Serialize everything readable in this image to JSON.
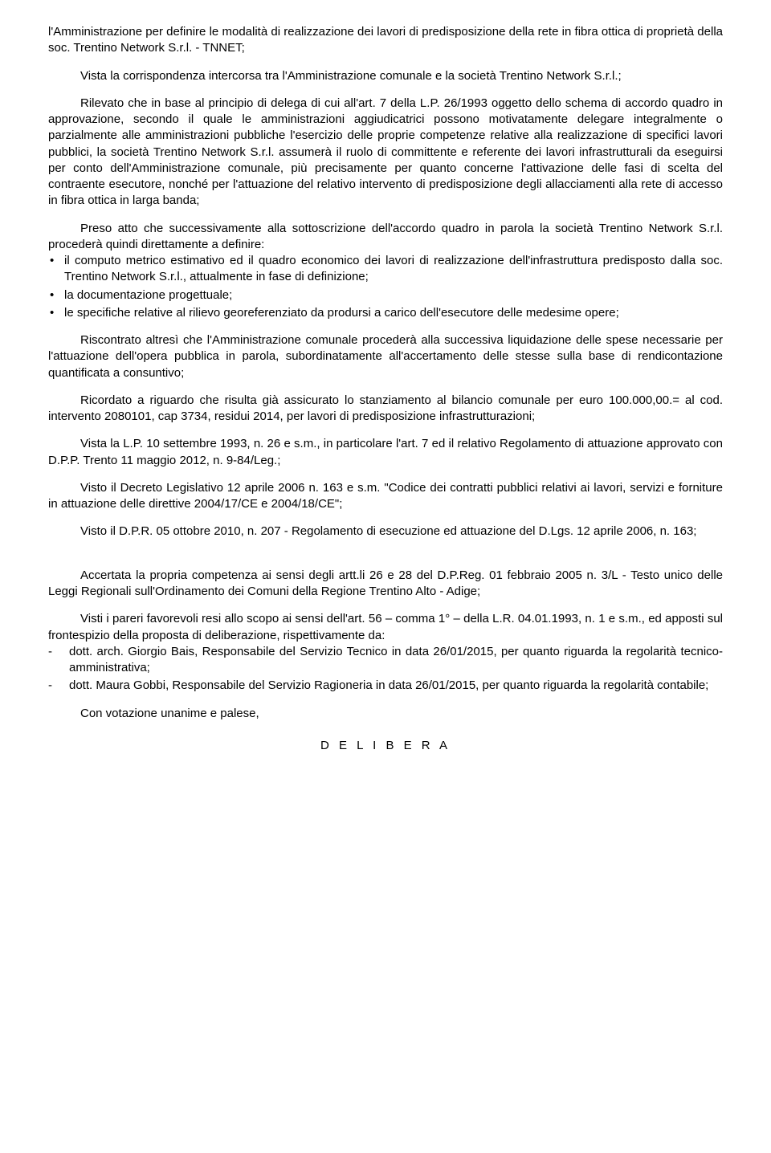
{
  "typography": {
    "font_family": "Arial, Helvetica, sans-serif",
    "font_size_pt": 11,
    "text_color": "#000000",
    "background_color": "#ffffff",
    "line_height": 1.35
  },
  "paragraphs": {
    "p1": "l'Amministrazione per definire le modalità di realizzazione dei lavori di predisposizione della rete in fibra ottica di proprietà della soc. Trentino Network S.r.l. - TNNET;",
    "p2": "Vista la corrispondenza intercorsa tra l'Amministrazione comunale e la società Trentino Network S.r.l.;",
    "p3": "Rilevato che in base al principio di delega di cui all'art. 7 della L.P. 26/1993 oggetto dello schema di accordo quadro in approvazione, secondo il quale le amministrazioni aggiudicatrici possono motivatamente delegare integralmente o parzialmente alle amministrazioni pubbliche l'esercizio delle proprie competenze relative alla realizzazione di specifici lavori pubblici, la società Trentino Network S.r.l. assumerà il ruolo di committente e referente dei lavori infrastrutturali da eseguirsi per conto dell'Amministrazione comunale, più precisamente per quanto concerne l'attivazione delle fasi di scelta del contraente esecutore, nonché per l'attuazione del relativo intervento di predisposizione degli allacciamenti alla rete di accesso in fibra ottica in larga banda;",
    "p4": "Preso atto che successivamente alla sottoscrizione dell'accordo quadro in parola la società Trentino Network S.r.l. procederà quindi direttamente a definire:",
    "list1": {
      "item1": "il computo metrico estimativo ed il quadro economico dei lavori di realizzazione dell'infrastruttura predisposto dalla soc. Trentino Network S.r.l., attualmente in fase di definizione;",
      "item2": "la documentazione progettuale;",
      "item3": "le specifiche relative al rilievo georeferenziato da prodursi a carico dell'esecutore delle medesime opere;"
    },
    "p5": "Riscontrato altresì che l'Amministrazione comunale procederà alla successiva liquidazione delle spese necessarie per l'attuazione dell'opera pubblica in parola, subordinatamente all'accertamento delle stesse sulla base di rendicontazione quantificata a consuntivo;",
    "p6": "Ricordato a riguardo che risulta già assicurato lo stanziamento al bilancio comunale per euro 100.000,00.= al cod. intervento 2080101, cap 3734, residui 2014, per lavori di predisposizione infrastrutturazioni;",
    "p7": "Vista la L.P. 10 settembre 1993, n. 26 e s.m., in particolare l'art. 7 ed il relativo Regolamento di attuazione approvato con D.P.P. Trento 11 maggio 2012, n. 9-84/Leg.;",
    "p8": "Visto il Decreto Legislativo 12 aprile 2006 n. 163 e s.m. \"Codice dei contratti pubblici relativi ai lavori, servizi e forniture in attuazione delle direttive 2004/17/CE e 2004/18/CE\";",
    "p9": "Visto il D.P.R. 05 ottobre 2010, n. 207 - Regolamento di esecuzione ed attuazione del D.Lgs. 12 aprile 2006, n. 163;",
    "p10": "Accertata la propria competenza ai sensi degli artt.li 26 e 28 del D.P.Reg. 01 febbraio 2005 n. 3/L - Testo unico delle Leggi Regionali sull'Ordinamento dei Comuni della Regione Trentino Alto - Adige;",
    "p11": "Visti i pareri favorevoli resi allo scopo ai sensi dell'art. 56 – comma 1° – della L.R. 04.01.1993, n. 1 e s.m., ed apposti sul frontespizio della proposta di deliberazione, rispettivamente da:",
    "list2": {
      "item1": "dott. arch. Giorgio Bais, Responsabile del Servizio Tecnico in data 26/01/2015, per quanto riguarda la regolarità tecnico-amministrativa;",
      "item2": "dott. Maura Gobbi, Responsabile del Servizio Ragioneria in data 26/01/2015, per quanto riguarda la regolarità contabile;"
    },
    "p12": "Con votazione unanime e palese,",
    "delibera": "D E L I B E R A"
  }
}
